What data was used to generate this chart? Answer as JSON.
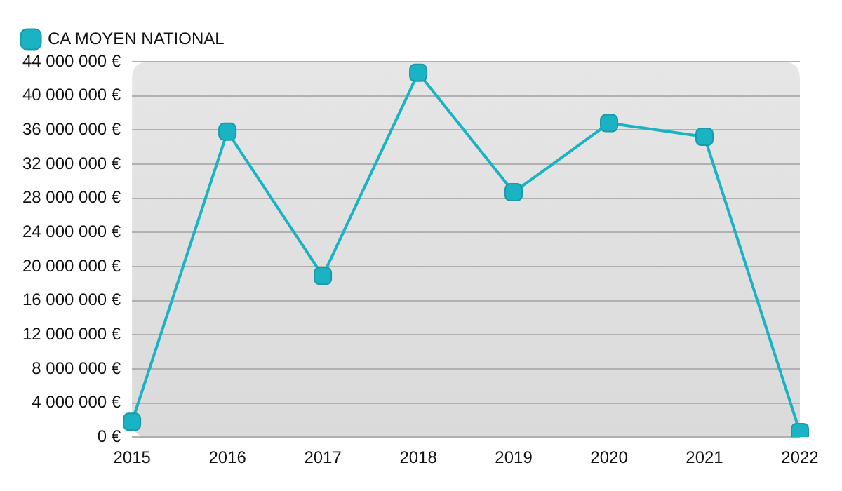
{
  "chart_data": {
    "type": "line",
    "categories": [
      "2015",
      "2016",
      "2017",
      "2018",
      "2019",
      "2020",
      "2021",
      "2022"
    ],
    "series": [
      {
        "name": "CA MOYEN NATIONAL",
        "color": "#1ab3c4",
        "values": [
          1800000,
          35800000,
          18900000,
          42700000,
          28700000,
          36800000,
          35200000,
          600000
        ]
      }
    ],
    "ylim": [
      0,
      44000000
    ],
    "yticks": [
      {
        "value": 0,
        "label": "0 €"
      },
      {
        "value": 4000000,
        "label": "4 000 000 €"
      },
      {
        "value": 8000000,
        "label": "8 000 000 €"
      },
      {
        "value": 12000000,
        "label": "12 000 000 €"
      },
      {
        "value": 16000000,
        "label": "16 000 000 €"
      },
      {
        "value": 20000000,
        "label": "20 000 000 €"
      },
      {
        "value": 24000000,
        "label": "24 000 000 €"
      },
      {
        "value": 28000000,
        "label": "28 000 000 €"
      },
      {
        "value": 32000000,
        "label": "32 000 000 €"
      },
      {
        "value": 36000000,
        "label": "36 000 000 €"
      },
      {
        "value": 40000000,
        "label": "40 000 000 €"
      },
      {
        "value": 44000000,
        "label": "44 000 000 €"
      }
    ],
    "grid": "y",
    "legend": "top left",
    "marker": "square",
    "line_style": "solid"
  }
}
